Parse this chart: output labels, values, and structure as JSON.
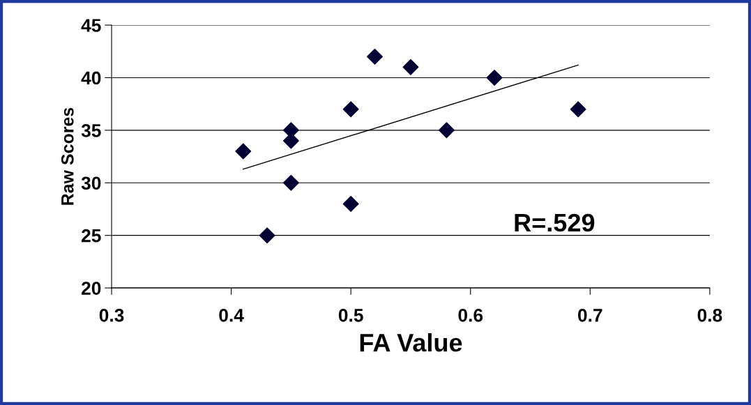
{
  "chart_data": {
    "type": "scatter",
    "xlabel": "FA Value",
    "ylabel": "Raw Scores",
    "xlim": [
      0.3,
      0.8
    ],
    "xticks": [
      0.3,
      0.4,
      0.5,
      0.6,
      0.7,
      0.8
    ],
    "ylim": [
      20,
      45
    ],
    "yticks": [
      20,
      25,
      30,
      35,
      40,
      45
    ],
    "grid": "y",
    "series": [
      {
        "marker": "diamond",
        "color": "#000033",
        "x": [
          0.41,
          0.43,
          0.45,
          0.45,
          0.45,
          0.5,
          0.5,
          0.52,
          0.55,
          0.58,
          0.62,
          0.69
        ],
        "values": [
          33,
          25,
          35,
          34,
          30,
          37,
          28,
          42,
          41,
          35,
          40,
          37
        ]
      },
      {
        "type": "line",
        "marker": "none",
        "color": "#000000",
        "x": [
          0.41,
          0.69
        ],
        "values": [
          31.3,
          41.2
        ]
      }
    ],
    "annotations": [
      "R=.529"
    ]
  }
}
